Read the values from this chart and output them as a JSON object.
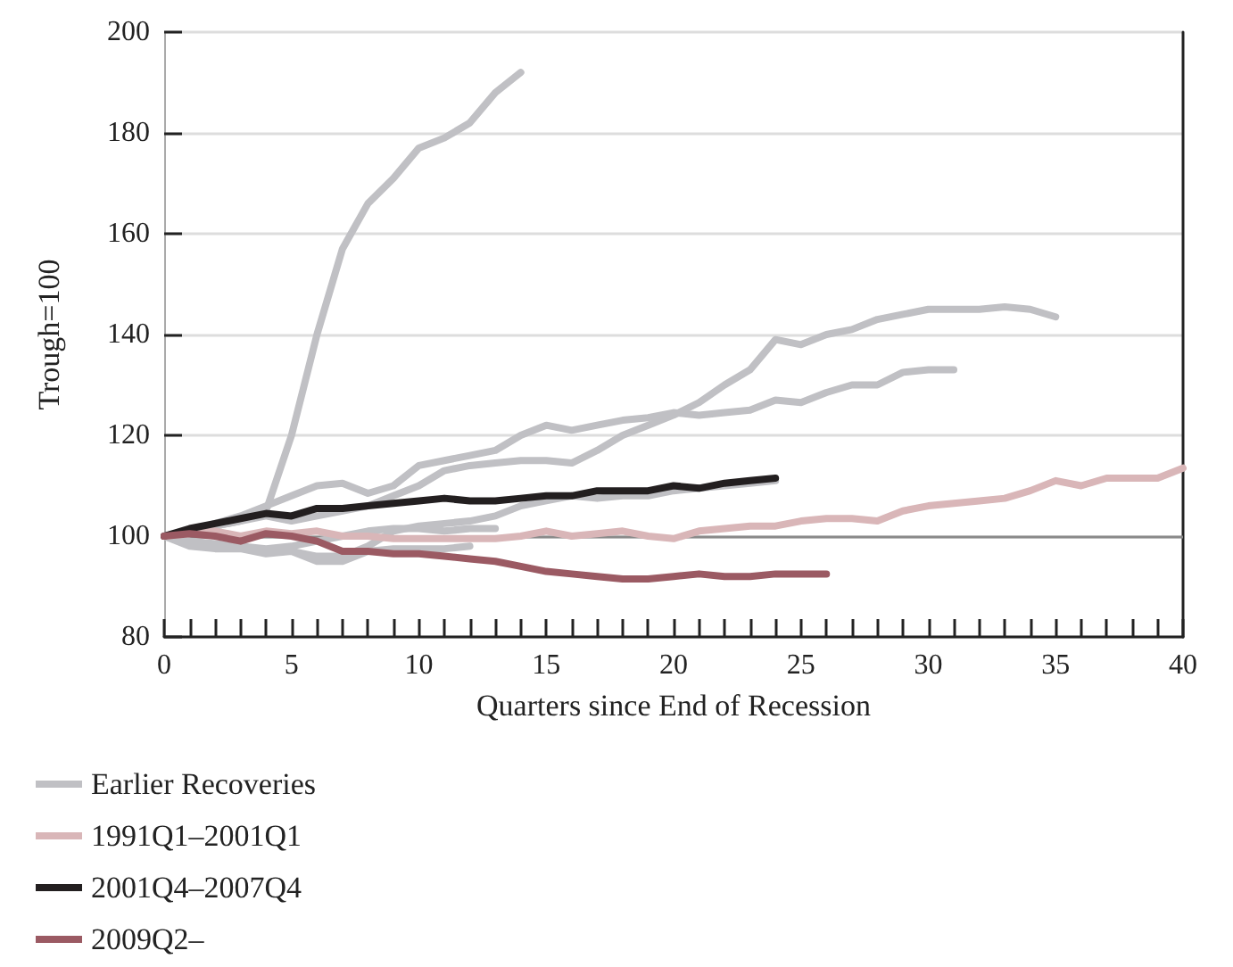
{
  "chart_data": {
    "type": "line",
    "xlabel": "Quarters since End of Recession",
    "ylabel": "Trough=100",
    "series": [
      {
        "name": "Earlier Recoveries",
        "color": "#c0c0c4",
        "x": [
          0,
          1,
          2,
          3,
          4,
          5,
          6,
          7,
          8,
          9,
          10,
          11,
          12,
          13,
          14
        ],
        "values": [
          100,
          101,
          102,
          103,
          105,
          120,
          140,
          157,
          166,
          171,
          177,
          179,
          182,
          188,
          192
        ]
      },
      {
        "color": "#c0c0c4",
        "x": [
          0,
          1,
          2,
          3,
          4,
          5,
          6,
          7,
          8,
          9,
          10,
          11,
          12,
          13,
          14,
          15,
          16,
          17,
          18,
          19,
          20,
          21,
          22,
          23,
          24,
          25,
          26,
          27,
          28,
          29,
          30,
          31,
          32,
          33,
          34,
          35
        ],
        "values": [
          100,
          101,
          102,
          103,
          104,
          103,
          104,
          105,
          106,
          108,
          110,
          113,
          114,
          114.5,
          115,
          115,
          114.5,
          117,
          120,
          122,
          124,
          126.5,
          130,
          133,
          139,
          138,
          140,
          141,
          143,
          144,
          145,
          145,
          145,
          145.5,
          145,
          143.5
        ]
      },
      {
        "color": "#c0c0c4",
        "x": [
          0,
          1,
          2,
          3,
          4,
          5,
          6,
          7,
          8,
          9,
          10,
          11,
          12,
          13,
          14,
          15,
          16,
          17,
          18,
          19,
          20,
          21,
          22,
          23,
          24,
          25,
          26,
          27,
          28,
          29,
          30,
          31
        ],
        "values": [
          100,
          101,
          102.5,
          104,
          106,
          108,
          110,
          110.5,
          108.5,
          110,
          114,
          115,
          116,
          117,
          120,
          122,
          121,
          122,
          123,
          123.5,
          124.5,
          124,
          124.5,
          125,
          127,
          126.5,
          128.5,
          130,
          130,
          132.5,
          133,
          133
        ]
      },
      {
        "color": "#c0c0c4",
        "x": [
          0,
          1,
          2,
          3,
          4,
          5,
          6,
          7,
          8,
          9,
          10,
          11,
          12,
          13,
          14,
          15,
          16,
          17,
          18,
          19,
          20,
          21,
          22,
          23,
          24
        ],
        "values": [
          100,
          99,
          98,
          98,
          97,
          97,
          96,
          96,
          98,
          101,
          102,
          102.5,
          103,
          104,
          106,
          107,
          108,
          107.5,
          108,
          108,
          109,
          109.5,
          110,
          110.5,
          111
        ]
      },
      {
        "color": "#c0c0c4",
        "x": [
          0,
          1,
          2,
          3,
          4,
          5,
          6,
          7,
          8,
          9,
          10,
          11,
          12,
          13
        ],
        "values": [
          100,
          99,
          98.5,
          98,
          97.5,
          98,
          99,
          100,
          101,
          101.5,
          101.5,
          101,
          101.5,
          101.5
        ]
      },
      {
        "color": "#c0c0c4",
        "x": [
          0,
          1,
          2,
          3,
          4,
          5,
          6,
          7,
          8,
          9,
          10,
          11,
          12
        ],
        "values": [
          100,
          98,
          97.5,
          97.5,
          96.5,
          97,
          95,
          95,
          97,
          97.5,
          97.5,
          97.5,
          98
        ]
      },
      {
        "name": "1991Q1–2001Q1",
        "color": "#d9b6b8",
        "x": [
          0,
          1,
          2,
          3,
          4,
          5,
          6,
          7,
          8,
          9,
          10,
          11,
          12,
          13,
          14,
          15,
          16,
          17,
          18,
          19,
          20,
          21,
          22,
          23,
          24,
          25,
          26,
          27,
          28,
          29,
          30,
          31,
          32,
          33,
          34,
          35,
          36,
          37,
          38,
          39,
          40
        ],
        "values": [
          100,
          100.5,
          101,
          100,
          101,
          100.5,
          101,
          100,
          100,
          99.5,
          99.5,
          99.5,
          99.5,
          99.5,
          100,
          101,
          100,
          100.5,
          101,
          100,
          99.5,
          101,
          101.5,
          102,
          102,
          103,
          103.5,
          103.5,
          103,
          105,
          106,
          106.5,
          107,
          107.5,
          109,
          111,
          110,
          111.5,
          111.5,
          111.5,
          113.5
        ]
      },
      {
        "name": "2001Q4–2007Q4",
        "color": "#231f20",
        "x": [
          0,
          1,
          2,
          3,
          4,
          5,
          6,
          7,
          8,
          9,
          10,
          11,
          12,
          13,
          14,
          15,
          16,
          17,
          18,
          19,
          20,
          21,
          22,
          23,
          24
        ],
        "values": [
          100,
          101.5,
          102.5,
          103.5,
          104.5,
          104,
          105.5,
          105.5,
          106,
          106.5,
          107,
          107.5,
          107,
          107,
          107.5,
          108,
          108,
          109,
          109,
          109,
          110,
          109.5,
          110.5,
          111,
          111.5
        ]
      },
      {
        "name": "2009Q2–",
        "color": "#9b5a63",
        "x": [
          0,
          1,
          2,
          3,
          4,
          5,
          6,
          7,
          8,
          9,
          10,
          11,
          12,
          13,
          14,
          15,
          16,
          17,
          18,
          19,
          20,
          21,
          22,
          23,
          24,
          25,
          26
        ],
        "values": [
          100,
          100.5,
          100,
          99,
          100.5,
          100,
          99,
          97,
          97,
          96.5,
          96.5,
          96,
          95.5,
          95,
          94,
          93,
          92.5,
          92,
          91.5,
          91.5,
          92,
          92.5,
          92,
          92,
          92.5,
          92.5,
          92.5
        ]
      }
    ],
    "xlim": [
      0,
      40
    ],
    "xticks": [
      0,
      {
        "value": 1,
        "label": null
      },
      {
        "value": 2,
        "label": null
      },
      {
        "value": 3,
        "label": null
      },
      {
        "value": 4,
        "label": null
      },
      5,
      {
        "value": 6,
        "label": null
      },
      {
        "value": 7,
        "label": null
      },
      {
        "value": 8,
        "label": null
      },
      {
        "value": 9,
        "label": null
      },
      10,
      {
        "value": 11,
        "label": null
      },
      {
        "value": 12,
        "label": null
      },
      {
        "value": 13,
        "label": null
      },
      {
        "value": 14,
        "label": null
      },
      15,
      {
        "value": 16,
        "label": null
      },
      {
        "value": 17,
        "label": null
      },
      {
        "value": 18,
        "label": null
      },
      {
        "value": 19,
        "label": null
      },
      20,
      {
        "value": 21,
        "label": null
      },
      {
        "value": 22,
        "label": null
      },
      {
        "value": 23,
        "label": null
      },
      {
        "value": 24,
        "label": null
      },
      25,
      {
        "value": 26,
        "label": null
      },
      {
        "value": 27,
        "label": null
      },
      {
        "value": 28,
        "label": null
      },
      {
        "value": 29,
        "label": null
      },
      30,
      {
        "value": 31,
        "label": null
      },
      {
        "value": 32,
        "label": null
      },
      {
        "value": 33,
        "label": null
      },
      {
        "value": 34,
        "label": null
      },
      35,
      {
        "value": 36,
        "label": null
      },
      {
        "value": 37,
        "label": null
      },
      {
        "value": 38,
        "label": null
      },
      {
        "value": 39,
        "label": null
      },
      40
    ],
    "ylim": [
      80,
      200
    ],
    "yticks": [
      80,
      100,
      120,
      140,
      160,
      180,
      200
    ],
    "grid": "y",
    "legend": "bottom",
    "marker": "none",
    "line_style": "solid",
    "ref_lines": [
      {
        "axis": "y",
        "value": 100,
        "color": "#8a8a8a"
      }
    ]
  }
}
